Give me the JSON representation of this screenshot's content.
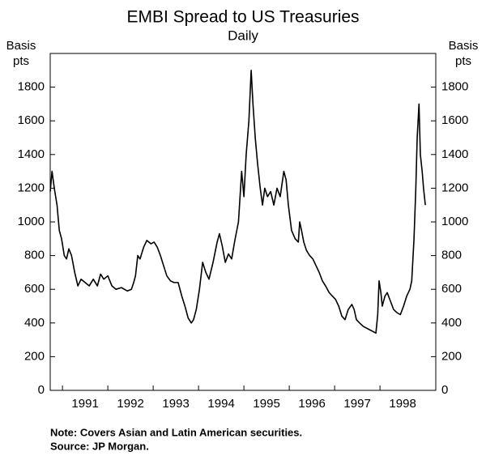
{
  "chart_data": {
    "type": "line",
    "title": "EMBI Spread to US Treasuries",
    "subtitle": "Daily",
    "ylabel": [
      "Basis",
      "pts"
    ],
    "y2label": [
      "Basis",
      "pts"
    ],
    "notes": [
      "Note: Covers Asian and Latin American securities.",
      "Source: JP Morgan."
    ],
    "color": "#000000",
    "xlim": [
      1990.73,
      1999.23
    ],
    "xticks": [
      1991,
      1992,
      1993,
      1994,
      1995,
      1996,
      1997,
      1998
    ],
    "ylim": [
      0,
      2000
    ],
    "yticks": [
      0,
      200,
      400,
      600,
      800,
      1000,
      1200,
      1400,
      1600,
      1800
    ],
    "y2lim": [
      0,
      2000
    ],
    "y2ticks": [
      0,
      200,
      400,
      600,
      800,
      1000,
      1200,
      1400,
      1600,
      1800
    ],
    "x": [
      1990.73,
      1990.77,
      1990.82,
      1990.88,
      1990.93,
      1990.98,
      1991.04,
      1991.09,
      1991.14,
      1991.2,
      1991.27,
      1991.34,
      1991.41,
      1991.5,
      1991.59,
      1991.68,
      1991.77,
      1991.84,
      1991.91,
      1992,
      1992.09,
      1992.18,
      1992.3,
      1992.43,
      1992.52,
      1992.57,
      1992.61,
      1992.66,
      1992.71,
      1992.79,
      1992.86,
      1992.95,
      1993.02,
      1993.09,
      1993.16,
      1993.23,
      1993.3,
      1993.38,
      1993.46,
      1993.55,
      1993.63,
      1993.7,
      1993.77,
      1993.84,
      1993.89,
      1993.95,
      1994.02,
      1994.09,
      1994.16,
      1994.23,
      1994.32,
      1994.41,
      1994.46,
      1994.52,
      1994.59,
      1994.66,
      1994.73,
      1994.8,
      1994.88,
      1994.95,
      1995,
      1995.05,
      1995.11,
      1995.16,
      1995.2,
      1995.25,
      1995.3,
      1995.36,
      1995.41,
      1995.46,
      1995.52,
      1995.59,
      1995.66,
      1995.73,
      1995.8,
      1995.88,
      1995.93,
      1995.98,
      1996.05,
      1996.13,
      1996.2,
      1996.23,
      1996.27,
      1996.32,
      1996.38,
      1996.45,
      1996.52,
      1996.59,
      1996.66,
      1996.73,
      1996.8,
      1996.88,
      1996.95,
      1997.02,
      1997.09,
      1997.16,
      1997.23,
      1997.3,
      1997.38,
      1997.43,
      1997.48,
      1997.55,
      1997.63,
      1997.7,
      1997.77,
      1997.84,
      1997.91,
      1997.95,
      1997.98,
      1998.02,
      1998.05,
      1998.11,
      1998.16,
      1998.23,
      1998.3,
      1998.38,
      1998.45,
      1998.52,
      1998.59,
      1998.66,
      1998.7,
      1998.75,
      1998.79,
      1998.82,
      1998.86,
      1998.89,
      1998.93,
      1998.96,
      1999
    ],
    "values": [
      1180,
      1300,
      1200,
      1100,
      950,
      900,
      800,
      780,
      840,
      800,
      700,
      620,
      660,
      640,
      620,
      660,
      620,
      690,
      660,
      680,
      620,
      600,
      610,
      590,
      600,
      640,
      680,
      800,
      780,
      850,
      890,
      870,
      880,
      850,
      800,
      740,
      680,
      650,
      640,
      640,
      560,
      500,
      430,
      400,
      420,
      480,
      600,
      760,
      700,
      660,
      760,
      880,
      930,
      860,
      760,
      810,
      780,
      890,
      1000,
      1300,
      1150,
      1400,
      1600,
      1900,
      1700,
      1500,
      1350,
      1200,
      1100,
      1200,
      1150,
      1180,
      1100,
      1200,
      1150,
      1300,
      1250,
      1100,
      950,
      900,
      880,
      1000,
      950,
      880,
      830,
      800,
      780,
      740,
      700,
      650,
      620,
      580,
      560,
      540,
      500,
      440,
      420,
      480,
      510,
      480,
      420,
      400,
      380,
      370,
      360,
      350,
      340,
      450,
      650,
      580,
      500,
      560,
      580,
      530,
      480,
      460,
      450,
      500,
      560,
      600,
      650,
      900,
      1200,
      1500,
      1700,
      1400,
      1300,
      1200,
      1100
    ]
  }
}
